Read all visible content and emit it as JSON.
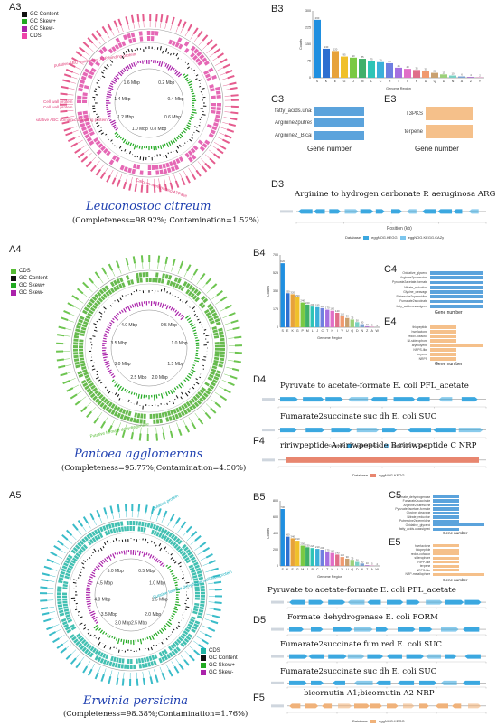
{
  "panels": {
    "A3": {
      "label": "A3",
      "species": "Leuconostoc citreum",
      "stats": "(Completeness=98.92%; Contamination=1.52%)",
      "legend": [
        {
          "name": "GC Content",
          "color": "#111111"
        },
        {
          "name": "GC Skew+",
          "color": "#22aa22"
        },
        {
          "name": "GC Skew-",
          "color": "#aa22aa"
        },
        {
          "name": "CDS",
          "color": "#ee44aa"
        }
      ],
      "ring_labels": [
        "0.2 Mbp",
        "0.4 Mbp",
        "0.6 Mbp",
        "0.8 Mbp",
        "1.0 Mbp",
        "1.2 Mbp",
        "1.4 Mbp",
        "1.6 Mbp"
      ],
      "side_labels": [
        "putative ABC transporter ATP-binding protein",
        "Cell wall protein",
        "Cell wall protein",
        "putative ABC domain-containing protein",
        "Calcium-transporting ATPase"
      ]
    },
    "A4": {
      "label": "A4",
      "species": "Pantoea agglomerans",
      "stats": "(Completeness=95.77%;Contamination=4.50%)",
      "legend": [
        {
          "name": "CDS",
          "color": "#55bb33"
        },
        {
          "name": "GC Content",
          "color": "#111111"
        },
        {
          "name": "GC Skew+",
          "color": "#22aa22"
        },
        {
          "name": "GC Skew-",
          "color": "#aa22aa"
        }
      ],
      "ring_labels": [
        "0.5 Mbp",
        "1.0 Mbp",
        "1.5 Mbp",
        "2.0 Mbp",
        "2.5 Mbp",
        "3.0 Mbp",
        "3.5 Mbp",
        "4.0 Mbp"
      ],
      "side_labels": [
        "Putative formate dehydrogenase"
      ]
    },
    "A5": {
      "label": "A5",
      "species": "Erwinia persicina",
      "stats": "(Completeness=98.38%;Contamination=1.76%)",
      "legend": [
        {
          "name": "CDS",
          "color": "#22b5a5"
        },
        {
          "name": "GC Content",
          "color": "#111111"
        },
        {
          "name": "GC Skew+",
          "color": "#22aa22"
        },
        {
          "name": "GC Skew-",
          "color": "#aa22aa"
        }
      ],
      "ring_labels": [
        "0.5 Mbp",
        "1.0 Mbp",
        "1.5 Mbp",
        "2.0 Mbp",
        "2.5 Mbp",
        "3.0 Mbp",
        "3.5 Mbp",
        "4.0 Mbp",
        "4.5 Mbp",
        "5.0 Mbp"
      ],
      "side_labels": [
        "putative protein",
        "Putative formate dehydrogenase flavoprotein"
      ]
    },
    "B3": {
      "label": "B3"
    },
    "B4": {
      "label": "B4"
    },
    "B5": {
      "label": "B5"
    },
    "C3": {
      "label": "C3",
      "xlabel": "Gene number",
      "items": [
        {
          "name": "fatty_acids.unassigned",
          "value": 1
        },
        {
          "name": "Arginine2putrescine",
          "value": 1
        },
        {
          "name": "Arginine2_Bicarbonate",
          "value": 1
        }
      ]
    },
    "E3": {
      "label": "E3",
      "xlabel": "Gene number",
      "items": [
        {
          "name": "T3PKS",
          "value": 1
        },
        {
          "name": "terpene",
          "value": 1
        }
      ]
    },
    "C4": {
      "label": "C4",
      "xlabel": "Gene number",
      "items": [
        {
          "name": "Oxidative_glycerol",
          "value": 1
        },
        {
          "name": "Arginine2putrescine",
          "value": 1
        },
        {
          "name": "Pyruvate2acetate-formate",
          "value": 1
        },
        {
          "name": "Nitrate_reduction",
          "value": 1
        },
        {
          "name": "Glycine_cleavage",
          "value": 1
        },
        {
          "name": "Putrescine2spermidine",
          "value": 1
        },
        {
          "name": "Fumarate2succinate",
          "value": 1
        },
        {
          "name": "fatty_acids.unassigned",
          "value": 1
        }
      ]
    },
    "E4": {
      "label": "E4",
      "xlabel": "Gene number",
      "items": [
        {
          "name": "thiopeptide",
          "value": 1
        },
        {
          "name": "hserlactone",
          "value": 1
        },
        {
          "name": "redox-cofactor",
          "value": 1
        },
        {
          "name": "NI-siderophore",
          "value": 1
        },
        {
          "name": "arylpolyene",
          "value": 2
        },
        {
          "name": "NRPS-like",
          "value": 1
        },
        {
          "name": "terpene",
          "value": 1
        },
        {
          "name": "NRPS",
          "value": 1
        }
      ]
    },
    "C5": {
      "label": "C5",
      "xlabel": "Gene number",
      "items": [
        {
          "name": "Formate_dehydrogenase",
          "value": 1
        },
        {
          "name": "Fumarate2succinate",
          "value": 1
        },
        {
          "name": "Arginine2putrescine",
          "value": 1
        },
        {
          "name": "Pyruvate2acetate-formate",
          "value": 1
        },
        {
          "name": "Glycine_cleavage",
          "value": 1
        },
        {
          "name": "Nitrate_reduction",
          "value": 1
        },
        {
          "name": "Putrescine2spermidine",
          "value": 1
        },
        {
          "name": "Oxidative_glycerol",
          "value": 2
        },
        {
          "name": "fatty_acids.unassigned",
          "value": 1
        }
      ]
    },
    "E5": {
      "label": "E5",
      "xlabel": "Gene number",
      "items": [
        {
          "name": "hserlactone",
          "value": 1
        },
        {
          "name": "thiopeptide",
          "value": 1
        },
        {
          "name": "redox-cofactor",
          "value": 1
        },
        {
          "name": "siderophore",
          "value": 1
        },
        {
          "name": "RiPP-like",
          "value": 1
        },
        {
          "name": "terpene",
          "value": 1
        },
        {
          "name": "NRPS-like",
          "value": 1
        },
        {
          "name": "NRP-metallophore",
          "value": 2
        }
      ]
    },
    "D3": {
      "label": "D3",
      "tracks": [
        {
          "title": "Arginine to hydrogen carbonate P. aeruginosa ARG"
        }
      ],
      "xlabel": "Position (kb)",
      "legend": [
        "eggNOG.KEGG",
        "eggNOG.KEGG.CAZy"
      ]
    },
    "D4": {
      "label": "D4",
      "tracks": [
        {
          "title": "Pyruvate to acetate-formate E. coli PFL_acetate"
        },
        {
          "title": "Fumarate2succinate suc dh E. coli SUC"
        }
      ],
      "xlabel": "Position (kb)",
      "legend": [
        "eggNOG.KEGG",
        "eggNOG.KEGG.CAZy"
      ]
    },
    "F4": {
      "label": "F4",
      "tracks": [
        {
          "title": "ririwpeptide A;ririwpeptide B;ririwpeptide C NRP"
        }
      ],
      "xlabel": "Position (kb)",
      "legend": [
        "eggNOG.KEGG"
      ]
    },
    "D5": {
      "label": "D5",
      "tracks": [
        {
          "title": "Pyruvate to acetate-formate E. coli PFL_acetate"
        },
        {
          "title": "Formate dehydrogenase E. coli FORM"
        },
        {
          "title": "Fumarate2succinate fum red E. coli SUC"
        },
        {
          "title": "Fumarate2succinate suc dh E. coli SUC"
        }
      ],
      "xlabel": "Position (kb)",
      "legend": [
        "eggNOG.KEGG"
      ]
    },
    "F5": {
      "label": "F5",
      "tracks": [
        {
          "title": "bicornutin A1;bicornutin A2 NRP"
        }
      ],
      "xlabel": "Position (kb)",
      "legend": [
        "eggNOG.KEGG"
      ]
    }
  },
  "colors": {
    "blue_bar": "#5ba3dc",
    "orange_bar": "#f5c08a",
    "salmon_bar": "#e8866f",
    "cds_blue": "#3ba8e0",
    "cds_orange": "#f0b27a"
  },
  "chart_data": [
    {
      "type": "bar",
      "id": "B3",
      "xlabel": "Genome Region",
      "ylabel": "Counts",
      "categories": [
        "S",
        "K",
        "E",
        "G",
        "J",
        "M",
        "L",
        "C",
        "H",
        "T",
        "V",
        "P",
        "U",
        "Q",
        "D",
        "N",
        "A",
        "Z",
        "Y"
      ],
      "values": [
        260,
        130,
        120,
        95,
        90,
        85,
        75,
        70,
        65,
        45,
        40,
        35,
        30,
        22,
        15,
        10,
        6,
        4,
        2
      ],
      "ylim": [
        0,
        300
      ]
    },
    {
      "type": "bar",
      "id": "B4",
      "xlabel": "Genome Region",
      "ylabel": "Counts",
      "categories": [
        "S",
        "E",
        "K",
        "G",
        "P",
        "M",
        "L",
        "J",
        "C",
        "T",
        "H",
        "I",
        "V",
        "U",
        "Q",
        "D",
        "N",
        "Z",
        "A",
        "W"
      ],
      "values": [
        620,
        330,
        320,
        290,
        240,
        220,
        200,
        195,
        185,
        170,
        160,
        140,
        110,
        90,
        75,
        50,
        30,
        10,
        5,
        2
      ],
      "ylim": [
        0,
        700
      ]
    },
    {
      "type": "bar",
      "id": "B5",
      "xlabel": "Genome Region",
      "ylabel": "Counts",
      "categories": [
        "S",
        "K",
        "E",
        "G",
        "M",
        "J",
        "P",
        "C",
        "L",
        "T",
        "H",
        "I",
        "V",
        "U",
        "Q",
        "D",
        "N",
        "Z",
        "A",
        "W"
      ],
      "values": [
        700,
        360,
        340,
        310,
        250,
        230,
        220,
        210,
        200,
        175,
        160,
        140,
        110,
        90,
        75,
        50,
        30,
        10,
        5,
        2
      ],
      "ylim": [
        0,
        800
      ]
    }
  ]
}
